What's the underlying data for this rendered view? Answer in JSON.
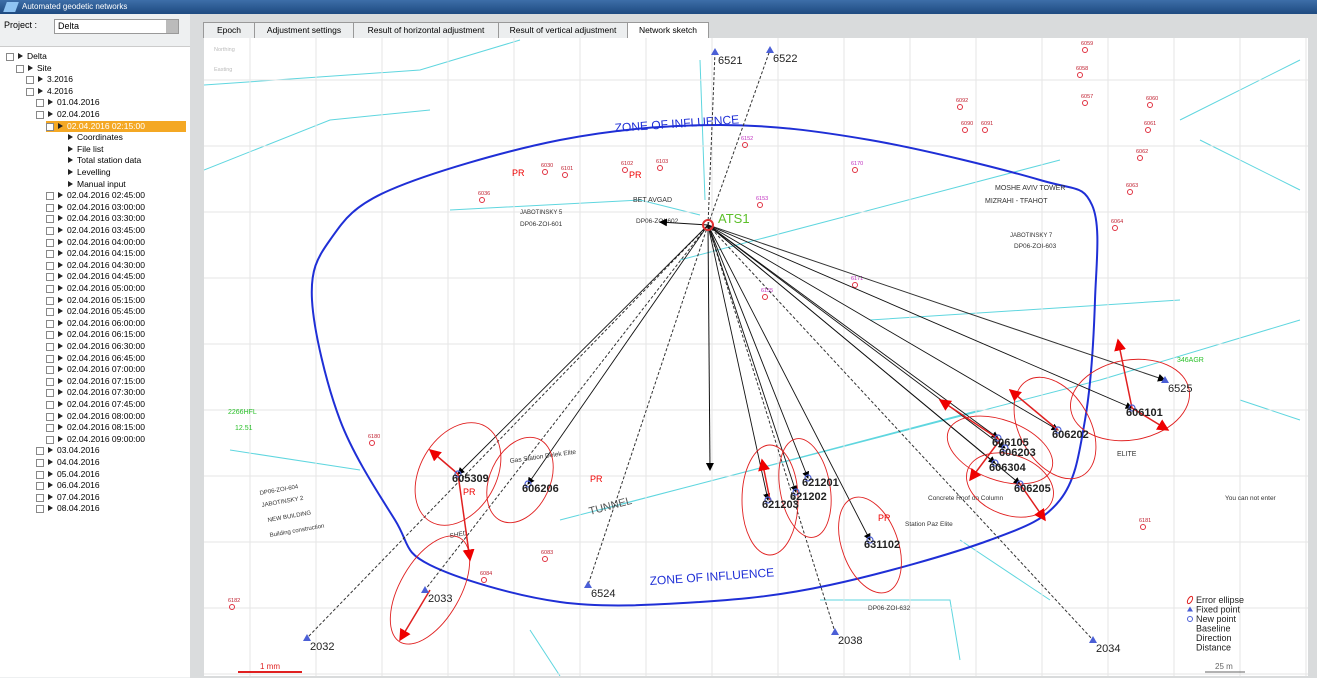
{
  "window": {
    "title": "Automated geodetic networks"
  },
  "project": {
    "label": "Project :",
    "value": "Delta"
  },
  "tree": [
    "Delta",
    "Site",
    "3.2016",
    "4.2016",
    "01.04.2016",
    "02.04.2016",
    "02.04.2016 02:15:00",
    "Coordinates",
    "File list",
    "Total station data",
    "Levelling",
    "Manual input",
    "02.04.2016 02:45:00",
    "02.04.2016 03:00:00",
    "02.04.2016 03:30:00",
    "02.04.2016 03:45:00",
    "02.04.2016 04:00:00",
    "02.04.2016 04:15:00",
    "02.04.2016 04:30:00",
    "02.04.2016 04:45:00",
    "02.04.2016 05:00:00",
    "02.04.2016 05:15:00",
    "02.04.2016 05:45:00",
    "02.04.2016 06:00:00",
    "02.04.2016 06:15:00",
    "02.04.2016 06:30:00",
    "02.04.2016 06:45:00",
    "02.04.2016 07:00:00",
    "02.04.2016 07:15:00",
    "02.04.2016 07:30:00",
    "02.04.2016 07:45:00",
    "02.04.2016 08:00:00",
    "02.04.2016 08:15:00",
    "02.04.2016 09:00:00",
    "03.04.2016",
    "04.04.2016",
    "05.04.2016",
    "06.04.2016",
    "07.04.2016",
    "08.04.2016"
  ],
  "tabs": [
    "Epoch",
    "Adjustment settings",
    "Result of horizontal adjustment",
    "Result of vertical adjustment",
    "Network sketch"
  ],
  "sketch": {
    "station": "ATS1",
    "fixed_points": [
      "6521",
      "6522",
      "2032",
      "2038",
      "2034",
      "6524",
      "6525",
      "2033"
    ],
    "new_points": [
      "605309",
      "606206",
      "621203",
      "621202",
      "621201",
      "631102",
      "606105",
      "606203",
      "606304",
      "606202",
      "606101",
      "606205"
    ],
    "control_points": [
      "6059",
      "6058",
      "6057",
      "6060",
      "6061",
      "6062",
      "6063",
      "6064",
      "6152",
      "6153",
      "6155",
      "6170",
      "6171",
      "6036",
      "6030",
      "6101",
      "6102",
      "6103",
      "6180",
      "6181",
      "6182",
      "6083",
      "6084",
      "6092",
      "6090",
      "6091"
    ],
    "annotations": [
      "ZONE OF INFLUENCE",
      "ZONE OF INFLUENCE",
      "TUNNEL",
      "MOSHE AVIV TOWER",
      "MIZRAHI - TFAHOT",
      "BET AVGAD",
      "PR",
      "PR",
      "JABOTINSKY 5",
      "DP06-ZOI-601",
      "DP06-ZOI-602",
      "JABOTINSKY 7",
      "DP06-ZOI-603",
      "Gas Station Delek Elite",
      "Concrete Roof on Column",
      "You can not enter",
      "ELITE",
      "DP06-ZOI-604",
      "JABOTINSKY 2",
      "NEW BUILDING",
      "Building construction",
      "SHED",
      "2266HFL",
      "12.51",
      "346AGR",
      "DP06-ZOI-632",
      "Station Paz Elite",
      "Northing",
      "Easting",
      "PR",
      "PR",
      "PR"
    ],
    "legend": [
      "Error ellipse",
      "Fixed point",
      "New point",
      "Baseline",
      "Direction",
      "Distance"
    ],
    "scale": {
      "left": "1 mm",
      "right": "25 m"
    }
  }
}
